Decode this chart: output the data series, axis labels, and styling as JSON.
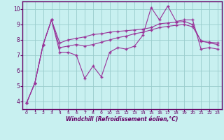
{
  "bg_color": "#c8f0f0",
  "grid_color": "#99cccc",
  "line_color": "#993399",
  "spine_color": "#660066",
  "xlabel": "Windchill (Refroidissement éolien,°C)",
  "xlim_min": -0.5,
  "xlim_max": 23.5,
  "ylim_min": 3.5,
  "ylim_max": 10.5,
  "xticks": [
    0,
    1,
    2,
    3,
    4,
    5,
    6,
    7,
    8,
    9,
    10,
    11,
    12,
    13,
    14,
    15,
    16,
    17,
    18,
    19,
    20,
    21,
    22,
    23
  ],
  "yticks": [
    4,
    5,
    6,
    7,
    8,
    9,
    10
  ],
  "line1_x": [
    0,
    1,
    2,
    3,
    4,
    5,
    6,
    7,
    8,
    9,
    10,
    11,
    12,
    13,
    14,
    15,
    16,
    17,
    18,
    19,
    20,
    21,
    22,
    23
  ],
  "line1_y": [
    3.9,
    5.2,
    7.7,
    9.3,
    7.2,
    7.2,
    7.0,
    5.5,
    6.3,
    5.6,
    7.2,
    7.5,
    7.4,
    7.6,
    8.3,
    10.1,
    9.3,
    10.2,
    9.2,
    9.3,
    9.3,
    7.4,
    7.5,
    7.4
  ],
  "line2_x": [
    0,
    1,
    2,
    3,
    4,
    5,
    6,
    7,
    8,
    9,
    10,
    11,
    12,
    13,
    14,
    15,
    16,
    17,
    18,
    19,
    20,
    21,
    22,
    23
  ],
  "line2_y": [
    3.9,
    5.2,
    7.7,
    9.3,
    7.8,
    8.0,
    8.1,
    8.2,
    8.35,
    8.4,
    8.5,
    8.55,
    8.6,
    8.65,
    8.7,
    8.8,
    9.05,
    9.1,
    9.15,
    9.2,
    9.0,
    7.9,
    7.85,
    7.8
  ],
  "line3_x": [
    0,
    1,
    2,
    3,
    4,
    5,
    6,
    7,
    8,
    9,
    10,
    11,
    12,
    13,
    14,
    15,
    16,
    17,
    18,
    19,
    20,
    21,
    22,
    23
  ],
  "line3_y": [
    3.9,
    5.2,
    7.7,
    9.3,
    7.5,
    7.6,
    7.7,
    7.6,
    7.7,
    7.85,
    8.0,
    8.15,
    8.25,
    8.4,
    8.5,
    8.65,
    8.8,
    8.88,
    8.95,
    9.0,
    8.85,
    7.95,
    7.8,
    7.7
  ]
}
